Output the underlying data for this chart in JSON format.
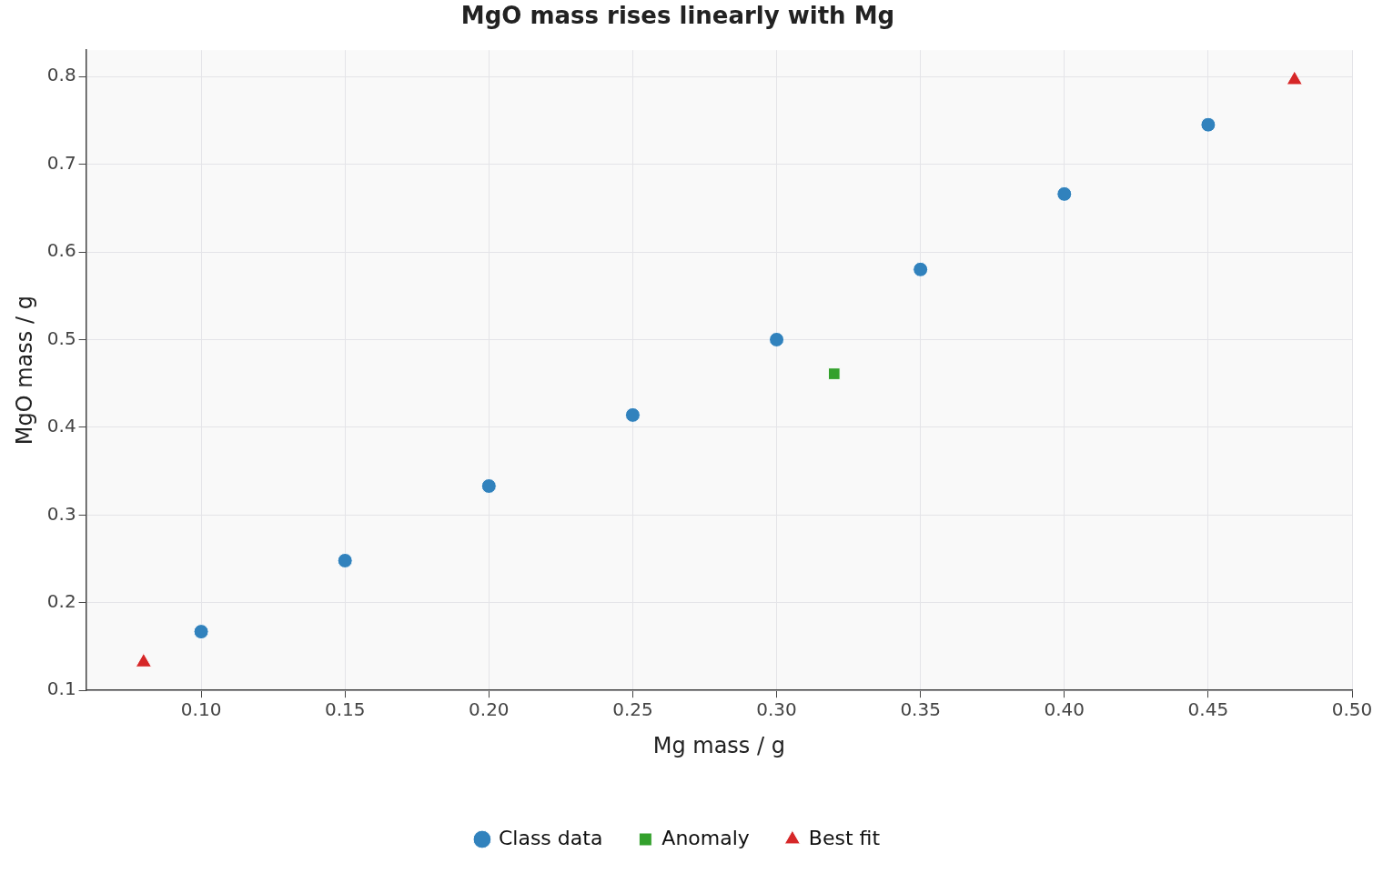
{
  "chart_data": {
    "type": "scatter",
    "title": "MgO mass rises linearly with Mg",
    "xlabel": "Mg mass / g",
    "ylabel": "MgO mass / g",
    "xlim": [
      0.06,
      0.5
    ],
    "ylim": [
      0.1,
      0.83
    ],
    "xticks": [
      {
        "value": 0.1,
        "label": "0.10"
      },
      {
        "value": 0.15,
        "label": "0.15"
      },
      {
        "value": 0.2,
        "label": "0.20"
      },
      {
        "value": 0.25,
        "label": "0.25"
      },
      {
        "value": 0.3,
        "label": "0.30"
      },
      {
        "value": 0.35,
        "label": "0.35"
      },
      {
        "value": 0.4,
        "label": "0.40"
      },
      {
        "value": 0.45,
        "label": "0.45"
      },
      {
        "value": 0.5,
        "label": "0.50"
      }
    ],
    "yticks": [
      0.1,
      0.2,
      0.3,
      0.4,
      0.5,
      0.6,
      0.7,
      0.8
    ],
    "grid": true,
    "legend": "bottom",
    "series": [
      {
        "name": "Class data",
        "color": "#3182bd",
        "marker": "circle",
        "x": [
          0.1,
          0.15,
          0.2,
          0.25,
          0.3,
          0.35,
          0.4,
          0.45
        ],
        "values": [
          0.167,
          0.248,
          0.333,
          0.414,
          0.5,
          0.58,
          0.666,
          0.745
        ]
      },
      {
        "name": "Anomaly",
        "color": "#33a02c",
        "marker": "square",
        "x": [
          0.32
        ],
        "values": [
          0.461
        ]
      },
      {
        "name": "Best fit",
        "color": "#d62728",
        "marker": "triangle",
        "x": [
          0.08,
          0.48
        ],
        "values": [
          0.132,
          0.796
        ]
      }
    ]
  }
}
